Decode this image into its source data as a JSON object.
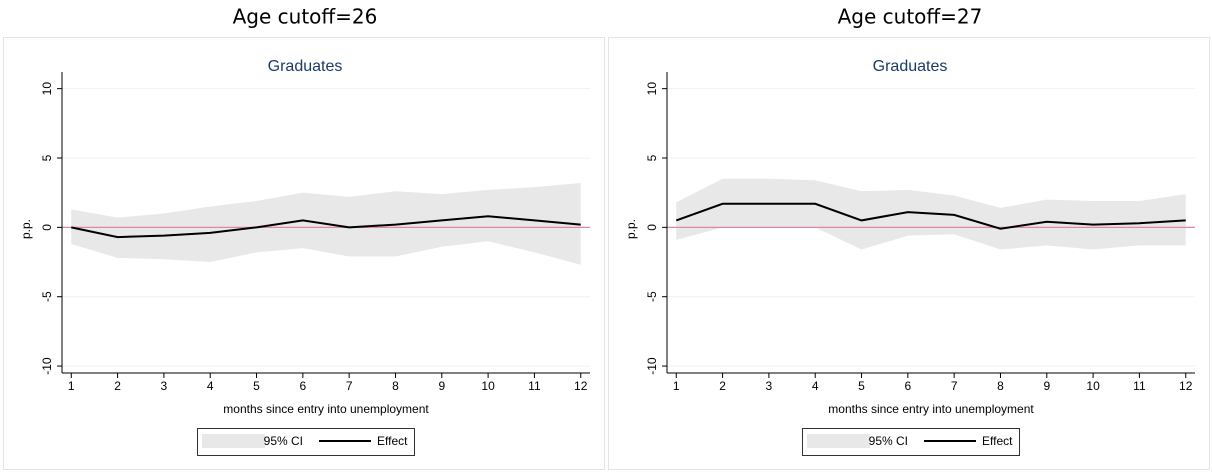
{
  "chart_data": [
    {
      "type": "line",
      "header": "Age cutoff=26",
      "title": "Graduates",
      "xlabel": "months since entry into unemployment",
      "ylabel": "p.p.",
      "x": [
        1,
        2,
        3,
        4,
        5,
        6,
        7,
        8,
        9,
        10,
        11,
        12
      ],
      "band": {
        "name": "95% CI",
        "color": "#e8e8e8",
        "upper": [
          1.3,
          0.7,
          1.0,
          1.5,
          1.9,
          2.5,
          2.2,
          2.6,
          2.4,
          2.7,
          2.9,
          3.2
        ],
        "lower": [
          -1.2,
          -2.2,
          -2.3,
          -2.5,
          -1.8,
          -1.5,
          -2.1,
          -2.1,
          -1.4,
          -1.0,
          -1.8,
          -2.7
        ]
      },
      "series": [
        {
          "name": "Effect",
          "color": "#000000",
          "values": [
            0,
            -0.7,
            -0.6,
            -0.4,
            0,
            0.5,
            0,
            0.2,
            0.5,
            0.8,
            0.5,
            0.2
          ]
        }
      ],
      "reference_line": {
        "value": 0,
        "color": "#e0899e"
      },
      "xlim": [
        0.8,
        12.2
      ],
      "xticks": [
        1,
        2,
        3,
        4,
        5,
        6,
        7,
        8,
        9,
        10,
        11,
        12
      ],
      "ylim": [
        -10.5,
        11.2
      ],
      "yticks": [
        -10,
        -5,
        0,
        5,
        10
      ],
      "grid": true
    },
    {
      "type": "line",
      "header": "Age cutoff=27",
      "title": "Graduates",
      "xlabel": "months since entry into unemployment",
      "ylabel": "p.p.",
      "x": [
        1,
        2,
        3,
        4,
        5,
        6,
        7,
        8,
        9,
        10,
        11,
        12
      ],
      "band": {
        "name": "95% CI",
        "color": "#e8e8e8",
        "upper": [
          1.8,
          3.5,
          3.5,
          3.4,
          2.6,
          2.7,
          2.3,
          1.4,
          2.0,
          1.9,
          1.9,
          2.4
        ],
        "lower": [
          -0.9,
          0,
          0,
          0,
          -1.6,
          -0.6,
          -0.5,
          -1.6,
          -1.3,
          -1.6,
          -1.3,
          -1.3
        ]
      },
      "series": [
        {
          "name": "Effect",
          "color": "#000000",
          "values": [
            0.5,
            1.7,
            1.7,
            1.7,
            0.5,
            1.1,
            0.9,
            -0.1,
            0.4,
            0.2,
            0.3,
            0.5
          ]
        }
      ],
      "reference_line": {
        "value": 0,
        "color": "#e0899e"
      },
      "xlim": [
        0.8,
        12.2
      ],
      "xticks": [
        1,
        2,
        3,
        4,
        5,
        6,
        7,
        8,
        9,
        10,
        11,
        12
      ],
      "ylim": [
        -10.5,
        11.2
      ],
      "yticks": [
        -10,
        -5,
        0,
        5,
        10
      ],
      "grid": true
    }
  ]
}
